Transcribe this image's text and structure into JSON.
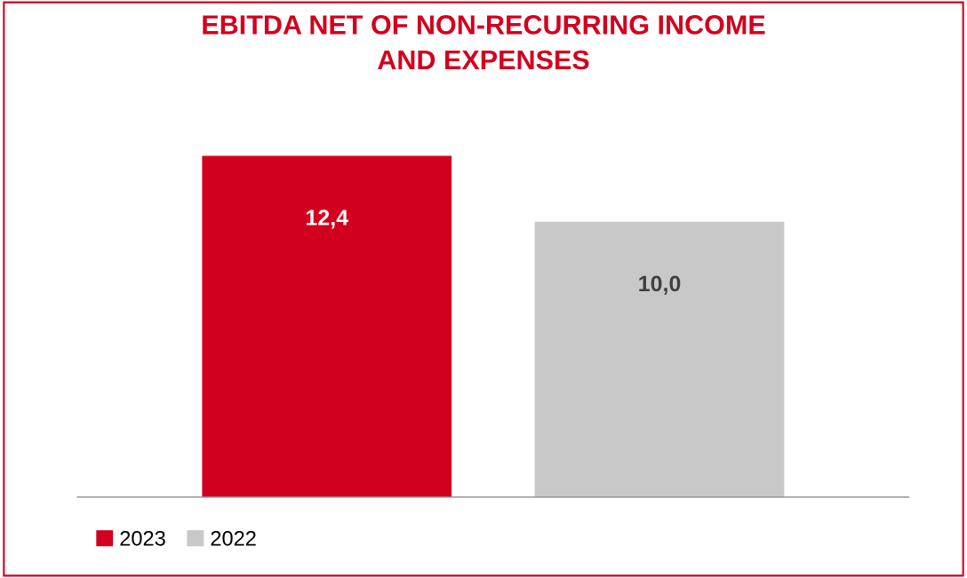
{
  "chart_data": {
    "type": "bar",
    "title": "EBITDA NET OF NON-RECURRING INCOME\nAND EXPENSES",
    "categories": [
      null
    ],
    "series": [
      {
        "name": "2023",
        "color": "#d2001e",
        "values": [
          12.4
        ],
        "value_labels": [
          "12,4"
        ]
      },
      {
        "name": "2022",
        "color": "#c8c8c8",
        "values": [
          10.0
        ],
        "value_labels": [
          "10,0"
        ]
      }
    ],
    "legend": "bottom left",
    "grid": false
  }
}
